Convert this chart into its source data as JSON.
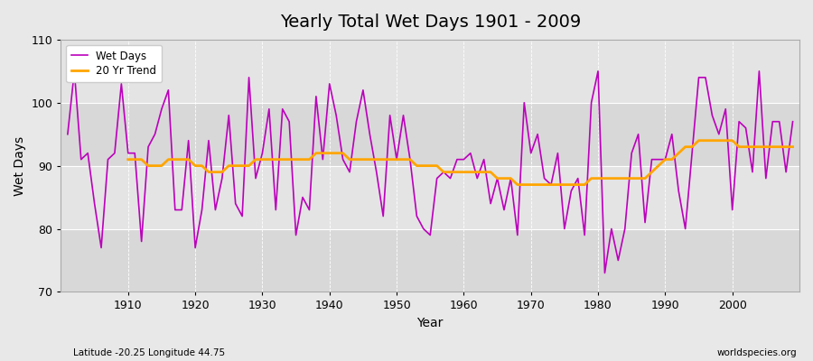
{
  "title": "Yearly Total Wet Days 1901 - 2009",
  "xlabel": "Year",
  "ylabel": "Wet Days",
  "subtitle": "Latitude -20.25 Longitude 44.75",
  "watermark": "worldspecies.org",
  "ylim": [
    70,
    110
  ],
  "yticks": [
    70,
    80,
    90,
    100,
    110
  ],
  "fig_bg_color": "#e8e8e8",
  "plot_bg_color": "#e0e0e0",
  "band_colors": [
    "#d8d8d8",
    "#e4e4e4"
  ],
  "line_color": "#bb00bb",
  "trend_color": "#ffa500",
  "years": [
    1901,
    1902,
    1903,
    1904,
    1905,
    1906,
    1907,
    1908,
    1909,
    1910,
    1911,
    1912,
    1913,
    1914,
    1915,
    1916,
    1917,
    1918,
    1919,
    1920,
    1921,
    1922,
    1923,
    1924,
    1925,
    1926,
    1927,
    1928,
    1929,
    1930,
    1931,
    1932,
    1933,
    1934,
    1935,
    1936,
    1937,
    1938,
    1939,
    1940,
    1941,
    1942,
    1943,
    1944,
    1945,
    1946,
    1947,
    1948,
    1949,
    1950,
    1951,
    1952,
    1953,
    1954,
    1955,
    1956,
    1957,
    1958,
    1959,
    1960,
    1961,
    1962,
    1963,
    1964,
    1965,
    1966,
    1967,
    1968,
    1969,
    1970,
    1971,
    1972,
    1973,
    1974,
    1975,
    1976,
    1977,
    1978,
    1979,
    1980,
    1981,
    1982,
    1983,
    1984,
    1985,
    1986,
    1987,
    1988,
    1989,
    1990,
    1991,
    1992,
    1993,
    1994,
    1995,
    1996,
    1997,
    1998,
    1999,
    2000,
    2001,
    2002,
    2003,
    2004,
    2005,
    2006,
    2007,
    2008,
    2009
  ],
  "wet_days": [
    95,
    105,
    91,
    92,
    84,
    77,
    91,
    92,
    103,
    92,
    92,
    78,
    93,
    95,
    99,
    102,
    83,
    83,
    94,
    77,
    83,
    94,
    83,
    88,
    98,
    84,
    82,
    104,
    88,
    92,
    99,
    83,
    99,
    97,
    79,
    85,
    83,
    101,
    91,
    103,
    98,
    91,
    89,
    97,
    102,
    95,
    89,
    82,
    98,
    91,
    98,
    91,
    82,
    80,
    79,
    88,
    89,
    88,
    91,
    91,
    92,
    88,
    91,
    84,
    88,
    83,
    88,
    79,
    100,
    92,
    95,
    88,
    87,
    92,
    80,
    86,
    88,
    79,
    100,
    105,
    73,
    80,
    75,
    80,
    92,
    95,
    81,
    91,
    91,
    91,
    95,
    86,
    80,
    92,
    104,
    104,
    98,
    95,
    99,
    83,
    97,
    96,
    89,
    105,
    88,
    97,
    97,
    89,
    97
  ],
  "trend": [
    null,
    null,
    null,
    null,
    null,
    null,
    null,
    null,
    null,
    91,
    91,
    91,
    90,
    90,
    90,
    91,
    91,
    91,
    91,
    90,
    90,
    89,
    89,
    89,
    90,
    90,
    90,
    90,
    91,
    91,
    91,
    91,
    91,
    91,
    91,
    91,
    91,
    92,
    92,
    92,
    92,
    92,
    91,
    91,
    91,
    91,
    91,
    91,
    91,
    91,
    91,
    91,
    90,
    90,
    90,
    90,
    89,
    89,
    89,
    89,
    89,
    89,
    89,
    89,
    88,
    88,
    88,
    87,
    87,
    87,
    87,
    87,
    87,
    87,
    87,
    87,
    87,
    87,
    88,
    88,
    88,
    88,
    88,
    88,
    88,
    88,
    88,
    89,
    90,
    91,
    91,
    92,
    93,
    93,
    94,
    94,
    94,
    94,
    94,
    94,
    93,
    93,
    93,
    93,
    93,
    93,
    93,
    93,
    93
  ]
}
